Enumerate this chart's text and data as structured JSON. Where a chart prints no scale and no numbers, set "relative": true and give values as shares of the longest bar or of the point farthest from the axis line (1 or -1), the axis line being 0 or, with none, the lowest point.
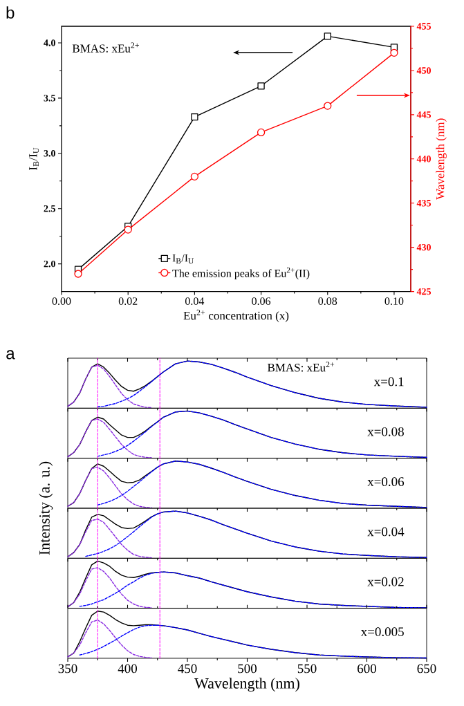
{
  "chart_data": [
    {
      "type": "line",
      "x": [
        0.005,
        0.02,
        0.04,
        0.06,
        0.08,
        0.1
      ],
      "xlim": [
        0,
        0.105
      ],
      "xticks": [
        {
          "value": 0,
          "label": "0.00"
        },
        {
          "value": 0.02,
          "label": "0.02"
        },
        {
          "value": 0.04,
          "label": "0.04"
        },
        {
          "value": 0.06,
          "label": "0.06"
        },
        {
          "value": 0.08,
          "label": "0.08"
        },
        {
          "value": 0.1,
          "label": "0.10"
        }
      ],
      "ylim": [
        1.75,
        4.15
      ],
      "yticks": [
        {
          "value": 2,
          "label": "2.0"
        },
        {
          "value": 2.5,
          "label": "2.5"
        },
        {
          "value": 3,
          "label": "3.0"
        },
        {
          "value": 3.5,
          "label": "3.5"
        },
        {
          "value": 4,
          "label": "4.0"
        }
      ],
      "y2lim": [
        425,
        455
      ],
      "y2ticks": [
        425,
        430,
        435,
        440,
        445,
        450,
        455
      ],
      "xlabel": "Eu$^{2+}$ concentration (x)",
      "ylabel": "I$_{B}$/I$_{U}$",
      "y2label": "Wavelength (nm)",
      "annotations": [
        "b",
        "BMAS: xEu$^{2+}$"
      ],
      "legend": "bottom left",
      "series": [
        {
          "name": "I$_{B}$/I$_{U}$",
          "color": "#000000",
          "marker": "square",
          "line_style": "solid",
          "values": [
            1.95,
            2.34,
            3.33,
            3.61,
            4.06,
            3.96
          ]
        },
        {
          "name": "The emission peaks of Eu$^{2+}$(II)",
          "color": "#ff0000",
          "marker": "circle",
          "line_style": "solid",
          "axis": "y2",
          "values": [
            427,
            432,
            438,
            443,
            446,
            452
          ]
        }
      ]
    },
    {
      "type": "line",
      "relative": true,
      "tick_labels": false,
      "xlim": [
        350,
        650
      ],
      "xticks": [
        350,
        400,
        450,
        500,
        550,
        600,
        650
      ],
      "annotations": [
        "a",
        "BMAS: xEu$^{2+}$",
        "x=0.1"
      ],
      "ref_lines": [
        {
          "axis": "x",
          "value": 375,
          "color": "#ff00ff",
          "line_style": "dashed"
        },
        {
          "axis": "x",
          "value": 427,
          "color": "#ff00ff",
          "line_style": "dashed"
        }
      ],
      "series": [
        {
          "color": "#000000",
          "line_style": "solid",
          "x": [
            350,
            355,
            360,
            365,
            370,
            375,
            380,
            385,
            390,
            395,
            400,
            405,
            410,
            415,
            420,
            425,
            430,
            440,
            450,
            460,
            470,
            480,
            490,
            500,
            520,
            540,
            560,
            580,
            600,
            625,
            650
          ],
          "values": [
            0.04,
            0.13,
            0.32,
            0.62,
            0.87,
            0.94,
            0.87,
            0.74,
            0.59,
            0.46,
            0.38,
            0.36,
            0.41,
            0.48,
            0.57,
            0.67,
            0.77,
            0.94,
            1,
            0.98,
            0.93,
            0.85,
            0.76,
            0.66,
            0.48,
            0.33,
            0.21,
            0.13,
            0.08,
            0.045,
            0.02
          ]
        },
        {
          "color": "#8a2be2",
          "line_style": "dashed",
          "x": [
            350,
            355,
            360,
            365,
            370,
            375,
            380,
            385,
            390,
            395,
            400,
            405,
            410,
            415,
            420
          ],
          "values": [
            0.04,
            0.13,
            0.32,
            0.62,
            0.87,
            0.91,
            0.83,
            0.67,
            0.49,
            0.31,
            0.18,
            0.09,
            0.05,
            0.02,
            0.01
          ]
        },
        {
          "color": "#0000ff",
          "line_style": "dashed",
          "x": [
            375,
            380,
            385,
            390,
            395,
            400,
            405,
            410,
            415,
            420,
            425,
            430,
            440,
            450,
            460,
            470,
            480,
            490,
            500,
            520,
            540,
            560,
            580,
            600,
            625,
            650
          ],
          "values": [
            0.03,
            0.04,
            0.07,
            0.1,
            0.15,
            0.2,
            0.27,
            0.36,
            0.46,
            0.56,
            0.67,
            0.77,
            0.94,
            1,
            0.98,
            0.93,
            0.85,
            0.76,
            0.66,
            0.48,
            0.33,
            0.21,
            0.13,
            0.08,
            0.045,
            0.02
          ]
        }
      ]
    },
    {
      "type": "line",
      "relative": true,
      "tick_labels": false,
      "xlim": [
        350,
        650
      ],
      "xticks": [
        350,
        400,
        450,
        500,
        550,
        600,
        650
      ],
      "annotations": [
        "x=0.08"
      ],
      "ref_lines": [
        {
          "axis": "x",
          "value": 375,
          "color": "#ff00ff",
          "line_style": "dashed"
        },
        {
          "axis": "x",
          "value": 427,
          "color": "#ff00ff",
          "line_style": "dashed"
        }
      ],
      "series": [
        {
          "color": "#000000",
          "line_style": "solid",
          "x": [
            350,
            355,
            360,
            365,
            370,
            375,
            380,
            385,
            390,
            395,
            400,
            405,
            410,
            415,
            420,
            425,
            430,
            440,
            450,
            460,
            470,
            480,
            490,
            500,
            520,
            540,
            560,
            580,
            600,
            625,
            650
          ],
          "values": [
            0.03,
            0.12,
            0.29,
            0.56,
            0.8,
            0.87,
            0.83,
            0.71,
            0.6,
            0.49,
            0.44,
            0.44,
            0.5,
            0.58,
            0.68,
            0.77,
            0.87,
            0.98,
            1,
            0.96,
            0.89,
            0.81,
            0.71,
            0.62,
            0.44,
            0.3,
            0.19,
            0.115,
            0.07,
            0.04,
            0.018
          ]
        },
        {
          "color": "#8a2be2",
          "line_style": "dashed",
          "x": [
            350,
            355,
            360,
            365,
            370,
            375,
            380,
            385,
            390,
            395,
            400,
            405,
            410,
            415,
            420
          ],
          "values": [
            0.03,
            0.12,
            0.29,
            0.56,
            0.8,
            0.83,
            0.76,
            0.61,
            0.45,
            0.29,
            0.17,
            0.08,
            0.04,
            0.02,
            0.01
          ]
        },
        {
          "color": "#0000ff",
          "line_style": "dashed",
          "x": [
            375,
            380,
            385,
            390,
            395,
            400,
            405,
            410,
            415,
            420,
            425,
            430,
            440,
            450,
            460,
            470,
            480,
            490,
            500,
            520,
            540,
            560,
            580,
            600,
            625,
            650
          ],
          "values": [
            0.04,
            0.07,
            0.1,
            0.145,
            0.2,
            0.27,
            0.36,
            0.46,
            0.56,
            0.67,
            0.77,
            0.87,
            0.98,
            1,
            0.96,
            0.89,
            0.81,
            0.71,
            0.62,
            0.44,
            0.3,
            0.19,
            0.115,
            0.07,
            0.04,
            0.018
          ]
        }
      ]
    },
    {
      "type": "line",
      "relative": true,
      "tick_labels": false,
      "xlim": [
        350,
        650
      ],
      "xticks": [
        350,
        400,
        450,
        500,
        550,
        600,
        650
      ],
      "ylabel": "Intensity (a. u.)",
      "annotations": [
        "x=0.06"
      ],
      "ref_lines": [
        {
          "axis": "x",
          "value": 375,
          "color": "#ff00ff",
          "line_style": "dashed"
        },
        {
          "axis": "x",
          "value": 427,
          "color": "#ff00ff",
          "line_style": "dashed"
        }
      ],
      "series": [
        {
          "color": "#000000",
          "line_style": "solid",
          "x": [
            350,
            355,
            360,
            365,
            370,
            375,
            380,
            385,
            390,
            395,
            400,
            405,
            410,
            415,
            420,
            425,
            430,
            440,
            450,
            460,
            470,
            480,
            490,
            500,
            520,
            540,
            560,
            580,
            600,
            625,
            650
          ],
          "values": [
            0.04,
            0.12,
            0.31,
            0.59,
            0.84,
            0.94,
            0.89,
            0.785,
            0.67,
            0.57,
            0.54,
            0.55,
            0.6,
            0.69,
            0.78,
            0.87,
            0.94,
            1,
            0.98,
            0.93,
            0.85,
            0.76,
            0.66,
            0.57,
            0.4,
            0.27,
            0.17,
            0.1,
            0.065,
            0.04,
            0.017
          ]
        },
        {
          "color": "#8a2be2",
          "line_style": "dashed",
          "x": [
            350,
            355,
            360,
            365,
            370,
            375,
            380,
            385,
            390,
            395,
            400,
            405,
            410,
            415,
            420
          ],
          "values": [
            0.04,
            0.12,
            0.31,
            0.59,
            0.84,
            0.87,
            0.79,
            0.64,
            0.47,
            0.3,
            0.18,
            0.09,
            0.04,
            0.02,
            0.01
          ]
        },
        {
          "color": "#0000ff",
          "line_style": "dashed",
          "x": [
            375,
            380,
            385,
            390,
            395,
            400,
            405,
            410,
            415,
            420,
            425,
            430,
            440,
            450,
            460,
            470,
            480,
            490,
            500,
            520,
            540,
            560,
            580,
            600,
            625,
            650
          ],
          "values": [
            0.07,
            0.1,
            0.145,
            0.2,
            0.27,
            0.36,
            0.46,
            0.56,
            0.67,
            0.77,
            0.87,
            0.94,
            1,
            0.98,
            0.93,
            0.85,
            0.76,
            0.66,
            0.57,
            0.4,
            0.27,
            0.17,
            0.1,
            0.065,
            0.04,
            0.017
          ]
        }
      ]
    },
    {
      "type": "line",
      "relative": true,
      "tick_labels": false,
      "xlim": [
        350,
        650
      ],
      "xticks": [
        350,
        400,
        450,
        500,
        550,
        600,
        650
      ],
      "annotations": [
        "x=0.04"
      ],
      "ref_lines": [
        {
          "axis": "x",
          "value": 375,
          "color": "#ff00ff",
          "line_style": "dashed"
        },
        {
          "axis": "x",
          "value": 427,
          "color": "#ff00ff",
          "line_style": "dashed"
        }
      ],
      "series": [
        {
          "color": "#000000",
          "line_style": "solid",
          "x": [
            350,
            355,
            360,
            365,
            370,
            375,
            380,
            385,
            390,
            395,
            400,
            405,
            410,
            415,
            420,
            425,
            430,
            440,
            450,
            460,
            470,
            480,
            490,
            500,
            520,
            540,
            560,
            580,
            600,
            625,
            650
          ],
          "values": [
            0.03,
            0.12,
            0.29,
            0.6,
            0.87,
            0.93,
            0.9,
            0.81,
            0.72,
            0.65,
            0.63,
            0.64,
            0.71,
            0.79,
            0.88,
            0.94,
            0.98,
            1,
            0.96,
            0.89,
            0.81,
            0.71,
            0.62,
            0.53,
            0.365,
            0.24,
            0.15,
            0.09,
            0.06,
            0.03,
            0.015
          ]
        },
        {
          "color": "#8a2be2",
          "line_style": "dashed",
          "x": [
            350,
            355,
            360,
            365,
            370,
            375,
            380,
            385,
            390,
            395,
            400,
            405,
            410,
            415,
            420
          ],
          "values": [
            0.03,
            0.12,
            0.29,
            0.56,
            0.8,
            0.83,
            0.76,
            0.61,
            0.45,
            0.29,
            0.17,
            0.08,
            0.04,
            0.02,
            0.01
          ]
        },
        {
          "color": "#0000ff",
          "line_style": "dashed",
          "x": [
            365,
            370,
            375,
            380,
            385,
            390,
            395,
            400,
            405,
            410,
            415,
            420,
            425,
            430,
            440,
            450,
            460,
            470,
            480,
            490,
            500,
            520,
            540,
            560,
            580,
            600,
            625,
            650
          ],
          "values": [
            0.04,
            0.07,
            0.1,
            0.145,
            0.2,
            0.27,
            0.36,
            0.46,
            0.56,
            0.67,
            0.77,
            0.87,
            0.94,
            0.98,
            1,
            0.96,
            0.89,
            0.81,
            0.71,
            0.62,
            0.53,
            0.365,
            0.24,
            0.15,
            0.09,
            0.06,
            0.03,
            0.015
          ]
        }
      ]
    },
    {
      "type": "line",
      "relative": true,
      "tick_labels": false,
      "xlim": [
        350,
        650
      ],
      "xticks": [
        350,
        400,
        450,
        500,
        550,
        600,
        650
      ],
      "annotations": [
        "x=0.02"
      ],
      "ref_lines": [
        {
          "axis": "x",
          "value": 375,
          "color": "#ff00ff",
          "line_style": "dashed"
        },
        {
          "axis": "x",
          "value": 427,
          "color": "#ff00ff",
          "line_style": "dashed"
        }
      ],
      "series": [
        {
          "color": "#000000",
          "line_style": "solid",
          "x": [
            350,
            355,
            360,
            365,
            370,
            375,
            380,
            385,
            390,
            395,
            400,
            405,
            410,
            415,
            420,
            425,
            430,
            440,
            450,
            460,
            470,
            480,
            490,
            500,
            520,
            540,
            560,
            580,
            600,
            625,
            650
          ],
          "values": [
            0.03,
            0.12,
            0.34,
            0.64,
            0.92,
            1,
            0.96,
            0.89,
            0.78,
            0.7,
            0.66,
            0.65,
            0.68,
            0.72,
            0.75,
            0.76,
            0.77,
            0.75,
            0.69,
            0.64,
            0.56,
            0.49,
            0.42,
            0.35,
            0.24,
            0.15,
            0.09,
            0.06,
            0.04,
            0.017,
            0.01
          ]
        },
        {
          "color": "#8a2be2",
          "line_style": "dashed",
          "x": [
            350,
            355,
            360,
            365,
            370,
            375,
            380,
            385,
            390,
            395,
            400,
            405,
            410,
            415,
            420
          ],
          "values": [
            0.03,
            0.12,
            0.3,
            0.58,
            0.83,
            0.86,
            0.78,
            0.64,
            0.46,
            0.3,
            0.17,
            0.09,
            0.04,
            0.02,
            0.01
          ]
        },
        {
          "color": "#0000ff",
          "line_style": "dashed",
          "x": [
            360,
            365,
            370,
            375,
            380,
            385,
            390,
            395,
            400,
            405,
            410,
            415,
            420,
            425,
            430,
            440,
            450,
            460,
            470,
            480,
            490,
            500,
            520,
            540,
            560,
            580,
            600,
            625,
            650
          ],
          "values": [
            0.04,
            0.06,
            0.09,
            0.14,
            0.18,
            0.25,
            0.32,
            0.4,
            0.49,
            0.56,
            0.64,
            0.7,
            0.74,
            0.76,
            0.77,
            0.75,
            0.69,
            0.64,
            0.56,
            0.49,
            0.42,
            0.35,
            0.24,
            0.15,
            0.09,
            0.06,
            0.04,
            0.017,
            0.01
          ]
        }
      ]
    },
    {
      "type": "line",
      "relative": true,
      "xlim": [
        350,
        650
      ],
      "xticks": [
        350,
        400,
        450,
        500,
        550,
        600,
        650
      ],
      "xlabel": "Wavelength (nm)",
      "annotations": [
        "x=0.005"
      ],
      "ref_lines": [
        {
          "axis": "x",
          "value": 375,
          "color": "#ff00ff",
          "line_style": "dashed"
        },
        {
          "axis": "x",
          "value": 427,
          "color": "#ff00ff",
          "line_style": "dashed"
        }
      ],
      "series": [
        {
          "color": "#000000",
          "line_style": "solid",
          "x": [
            350,
            355,
            360,
            365,
            370,
            375,
            380,
            385,
            390,
            395,
            400,
            405,
            410,
            415,
            420,
            425,
            430,
            440,
            450,
            460,
            470,
            480,
            490,
            500,
            520,
            540,
            560,
            580,
            600,
            625,
            650
          ],
          "values": [
            0.03,
            0.11,
            0.35,
            0.64,
            0.91,
            1,
            0.98,
            0.91,
            0.82,
            0.75,
            0.7,
            0.69,
            0.7,
            0.71,
            0.71,
            0.7,
            0.69,
            0.65,
            0.6,
            0.53,
            0.46,
            0.4,
            0.34,
            0.28,
            0.19,
            0.12,
            0.07,
            0.046,
            0.028,
            0.013,
            0.007
          ]
        },
        {
          "color": "#8a2be2",
          "line_style": "dashed",
          "x": [
            350,
            355,
            360,
            365,
            370,
            375,
            380,
            385,
            390,
            395,
            400,
            405,
            410,
            415,
            420
          ],
          "values": [
            0.03,
            0.11,
            0.28,
            0.54,
            0.77,
            0.81,
            0.73,
            0.59,
            0.43,
            0.28,
            0.16,
            0.08,
            0.04,
            0.02,
            0.01
          ]
        },
        {
          "color": "#0000ff",
          "line_style": "dashed",
          "x": [
            360,
            365,
            370,
            375,
            380,
            385,
            390,
            395,
            400,
            405,
            410,
            415,
            420,
            425,
            430,
            440,
            450,
            460,
            470,
            480,
            490,
            500,
            520,
            540,
            560,
            580,
            600,
            625,
            650
          ],
          "values": [
            0.07,
            0.1,
            0.14,
            0.19,
            0.25,
            0.32,
            0.39,
            0.47,
            0.54,
            0.61,
            0.66,
            0.69,
            0.7,
            0.7,
            0.69,
            0.65,
            0.6,
            0.53,
            0.46,
            0.4,
            0.34,
            0.28,
            0.19,
            0.12,
            0.07,
            0.046,
            0.028,
            0.013,
            0.007
          ]
        }
      ]
    }
  ]
}
